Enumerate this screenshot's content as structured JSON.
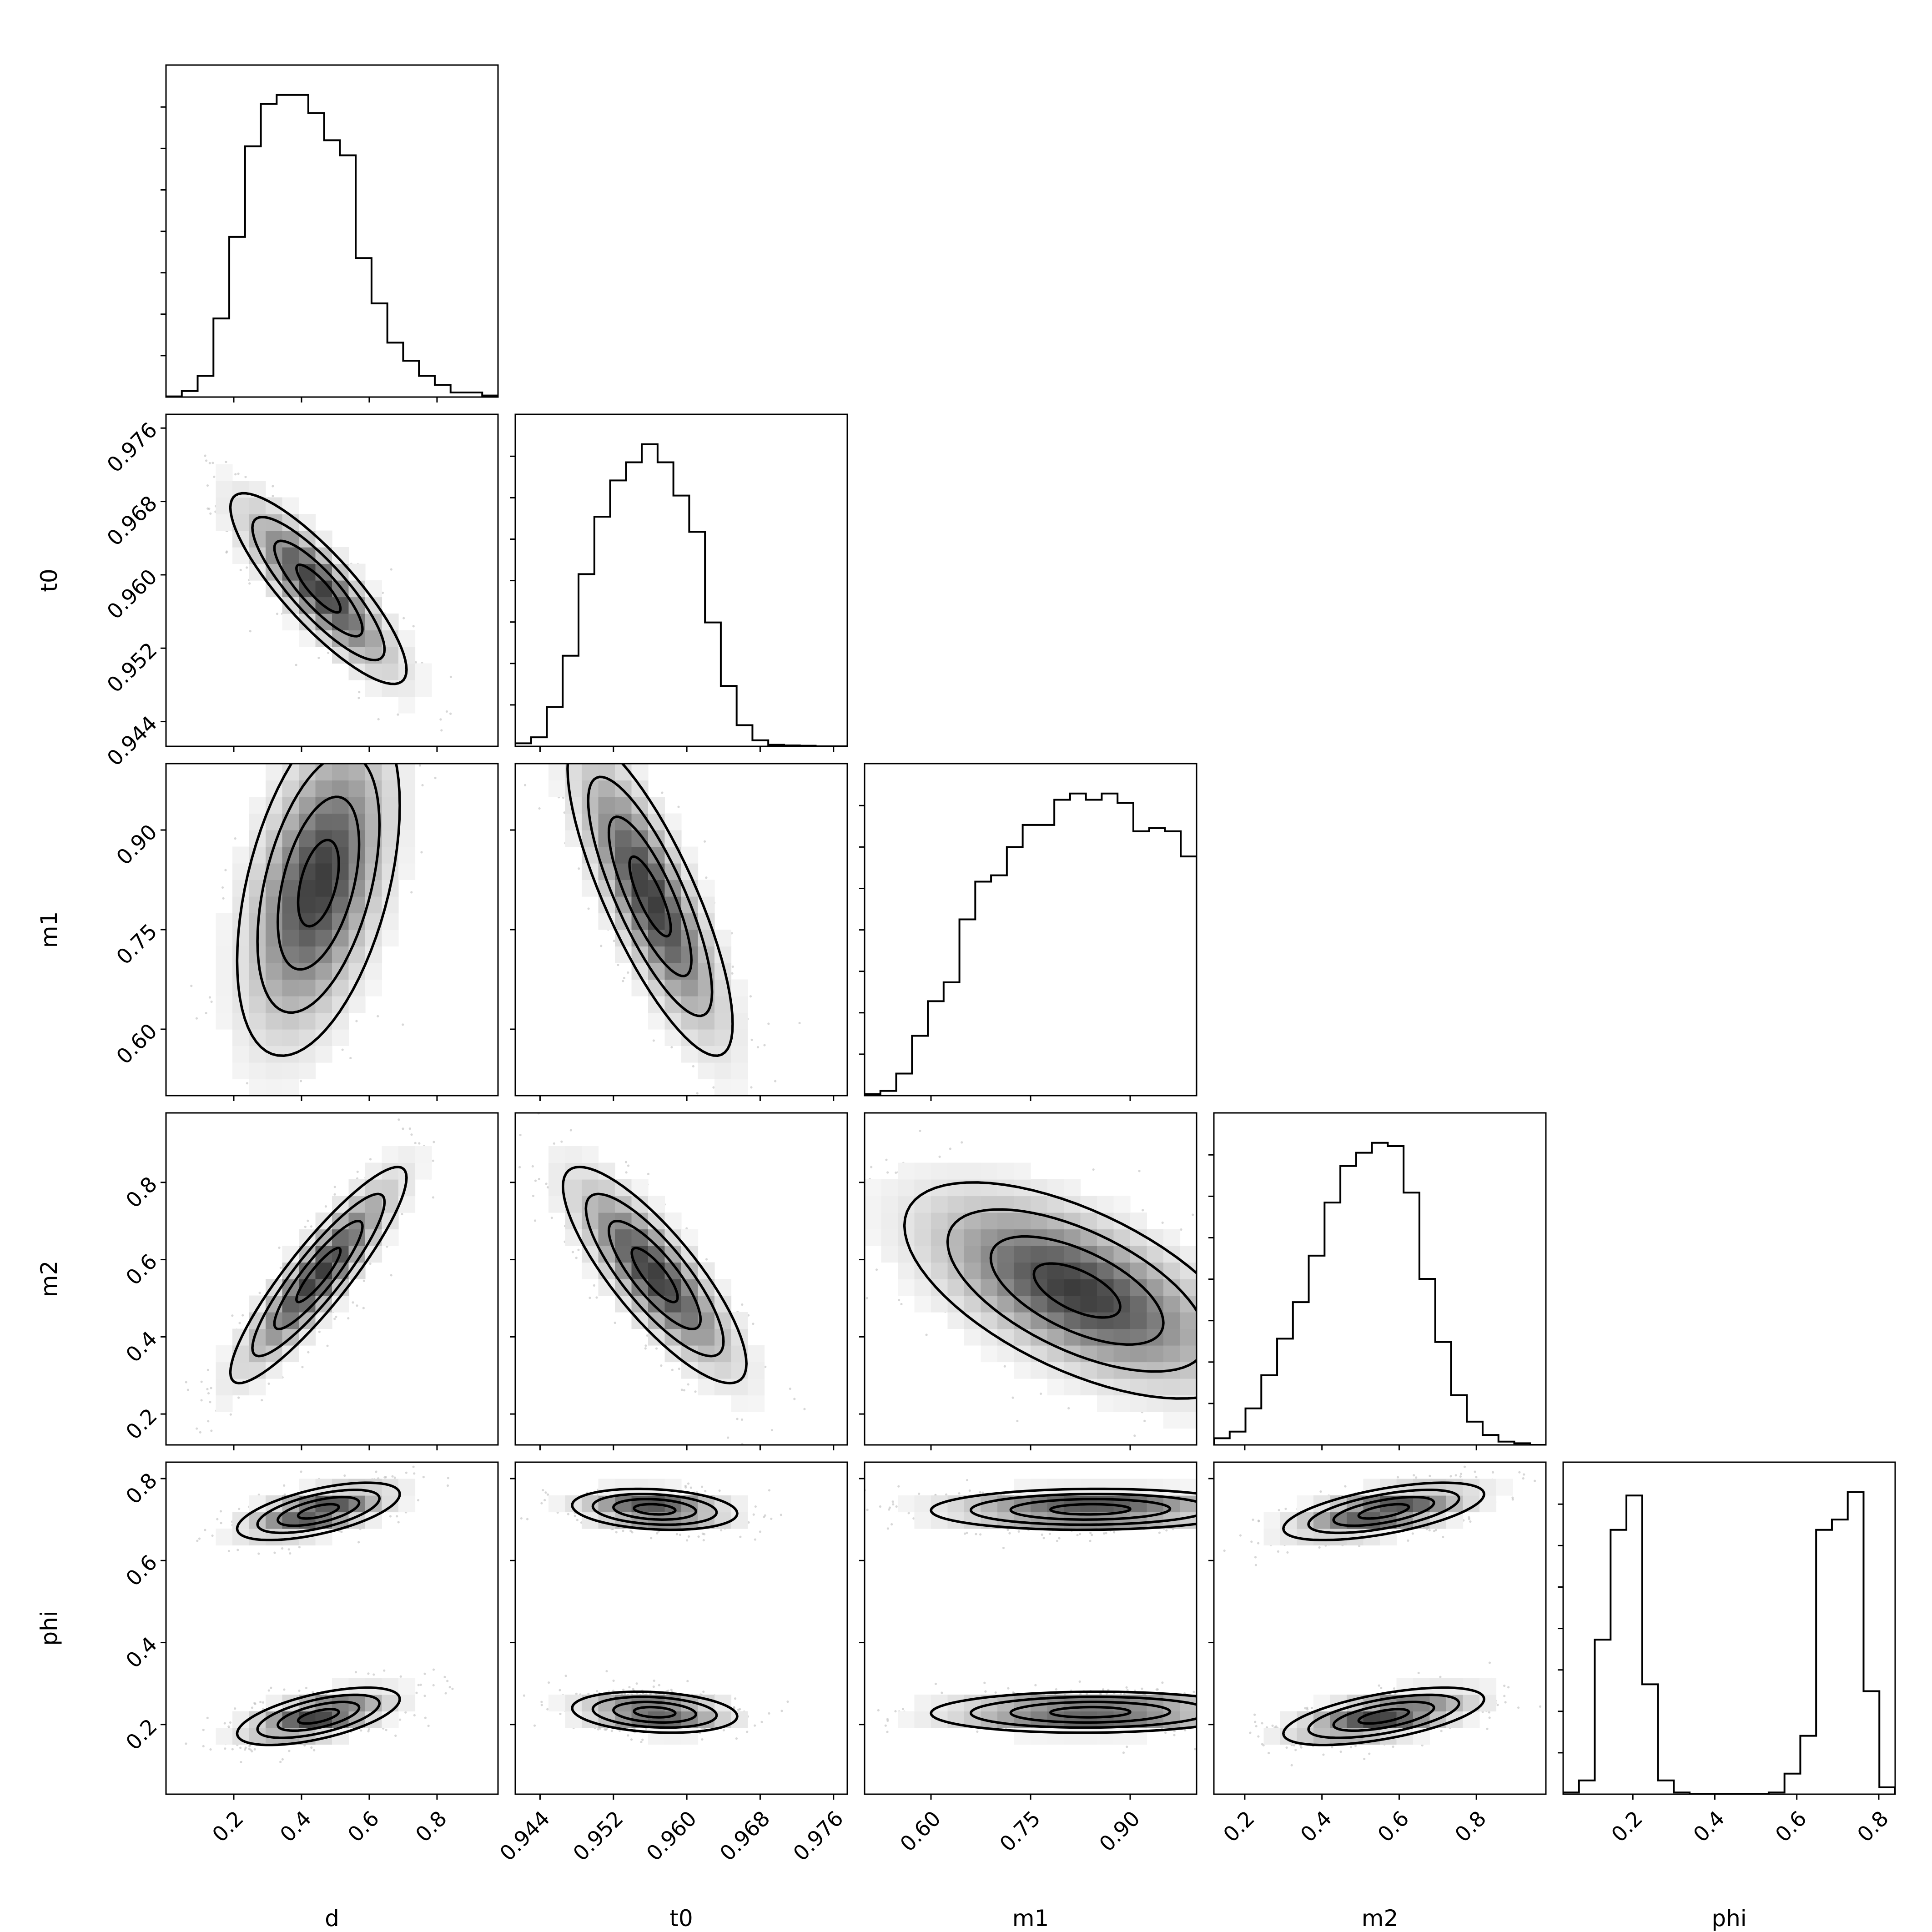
{
  "chart_data": {
    "type": "corner",
    "parameters": [
      {
        "name": "d",
        "range": [
          0.0,
          0.98
        ],
        "ticks": [
          0.2,
          0.4,
          0.6,
          0.8
        ],
        "tick_labels": [
          "0.2",
          "0.4",
          "0.6",
          "0.8"
        ]
      },
      {
        "name": "t0",
        "range": [
          0.9413,
          0.9775
        ],
        "ticks": [
          0.944,
          0.952,
          0.96,
          0.968,
          0.976
        ],
        "tick_labels": [
          "0.944",
          "0.952",
          "0.960",
          "0.968",
          "0.976"
        ]
      },
      {
        "name": "m1",
        "range": [
          0.5,
          1.0
        ],
        "ticks": [
          0.6,
          0.75,
          0.9
        ],
        "tick_labels": [
          "0.60",
          "0.75",
          "0.90"
        ]
      },
      {
        "name": "m2",
        "range": [
          0.12,
          0.98
        ],
        "ticks": [
          0.2,
          0.4,
          0.6,
          0.8
        ],
        "tick_labels": [
          "0.2",
          "0.4",
          "0.6",
          "0.8"
        ]
      },
      {
        "name": "phi",
        "range": [
          0.03,
          0.84
        ],
        "ticks": [
          0.2,
          0.4,
          0.6,
          0.8
        ],
        "tick_labels": [
          "0.2",
          "0.4",
          "0.6",
          "0.8"
        ]
      }
    ],
    "histograms": {
      "d": [
        0.2,
        2,
        7,
        26,
        53,
        83,
        97,
        100,
        100,
        94,
        85,
        80,
        46,
        31,
        18,
        12,
        7,
        4,
        1.5,
        1.5,
        0.5
      ],
      "t0": [
        1,
        3,
        13,
        30,
        57,
        76,
        88,
        94,
        100,
        94,
        83,
        71,
        41,
        20,
        7,
        2,
        0.5,
        0.3,
        0.2,
        0,
        0
      ],
      "m1": [
        0.5,
        1.5,
        7,
        19,
        30,
        36,
        56,
        68,
        70,
        79,
        86,
        86,
        94,
        96,
        94,
        96,
        93,
        84,
        85,
        84,
        76
      ],
      "m2": [
        2,
        4,
        11,
        21,
        32,
        43,
        57,
        73,
        84,
        88,
        91,
        90,
        76,
        50,
        31,
        15,
        7,
        3,
        1,
        0.5,
        0
      ],
      "phi": [
        0.5,
        4,
        45,
        77,
        87,
        32,
        4,
        0.5,
        0,
        0,
        0,
        0,
        0,
        0.5,
        6,
        17,
        77,
        80,
        88,
        30,
        2
      ]
    },
    "pairs": [
      {
        "x": "d",
        "y": "t0",
        "blobs": [
          {
            "cx": 0.45,
            "cy": 0.9585,
            "sx": 0.13,
            "sy": 0.0052,
            "rho": -0.85
          }
        ]
      },
      {
        "x": "d",
        "y": "m1",
        "blobs": [
          {
            "cx": 0.45,
            "cy": 0.82,
            "sx": 0.12,
            "sy": 0.13,
            "rho": 0.45
          }
        ]
      },
      {
        "x": "t0",
        "y": "m1",
        "blobs": [
          {
            "cx": 0.956,
            "cy": 0.8,
            "sx": 0.0045,
            "sy": 0.12,
            "rho": -0.8
          }
        ]
      },
      {
        "x": "d",
        "y": "m2",
        "blobs": [
          {
            "cx": 0.45,
            "cy": 0.56,
            "sx": 0.13,
            "sy": 0.14,
            "rho": 0.9
          }
        ]
      },
      {
        "x": "t0",
        "y": "m2",
        "blobs": [
          {
            "cx": 0.9565,
            "cy": 0.56,
            "sx": 0.005,
            "sy": 0.14,
            "rho": -0.82
          }
        ]
      },
      {
        "x": "m1",
        "y": "m2",
        "blobs": [
          {
            "cx": 0.82,
            "cy": 0.52,
            "sx": 0.13,
            "sy": 0.14,
            "rho": -0.6
          }
        ]
      },
      {
        "x": "d",
        "y": "phi",
        "blobs": [
          {
            "cx": 0.45,
            "cy": 0.72,
            "sx": 0.12,
            "sy": 0.035,
            "rho": 0.6
          },
          {
            "cx": 0.45,
            "cy": 0.22,
            "sx": 0.12,
            "sy": 0.035,
            "rho": 0.6
          }
        ]
      },
      {
        "x": "t0",
        "y": "phi",
        "blobs": [
          {
            "cx": 0.9565,
            "cy": 0.725,
            "sx": 0.0045,
            "sy": 0.025,
            "rho": -0.2
          },
          {
            "cx": 0.9565,
            "cy": 0.23,
            "sx": 0.0045,
            "sy": 0.025,
            "rho": -0.2
          }
        ]
      },
      {
        "x": "m1",
        "y": "phi",
        "blobs": [
          {
            "cx": 0.84,
            "cy": 0.725,
            "sx": 0.12,
            "sy": 0.025,
            "rho": 0.05
          },
          {
            "cx": 0.84,
            "cy": 0.23,
            "sx": 0.12,
            "sy": 0.025,
            "rho": 0.05
          }
        ]
      },
      {
        "x": "m2",
        "y": "phi",
        "blobs": [
          {
            "cx": 0.56,
            "cy": 0.72,
            "sx": 0.13,
            "sy": 0.035,
            "rho": 0.6
          },
          {
            "cx": 0.56,
            "cy": 0.22,
            "sx": 0.13,
            "sy": 0.035,
            "rho": 0.6
          }
        ]
      }
    ],
    "colors": {
      "contour": "#000000",
      "density_max": "#3c3c3c",
      "points": "#bdbdbd"
    }
  }
}
